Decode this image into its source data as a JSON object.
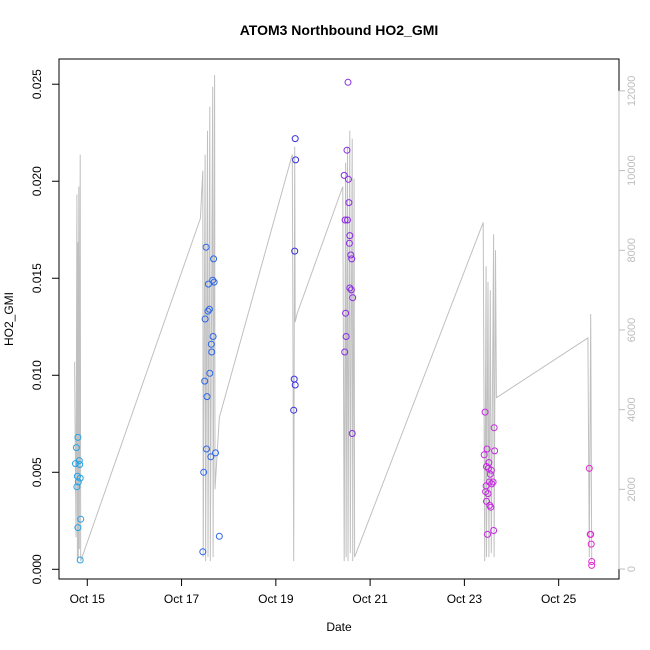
{
  "chart_data": {
    "type": "scatter",
    "title": "ATOM3 Northbound HO2_GMI",
    "xlabel": "Date",
    "ylabel": "HO2_GMI",
    "x_axis": {
      "ticks": [
        {
          "day": 15,
          "label": "Oct 15"
        },
        {
          "day": 17,
          "label": "Oct 17"
        },
        {
          "day": 19,
          "label": "Oct 19"
        },
        {
          "day": 21,
          "label": "Oct 21"
        },
        {
          "day": 23,
          "label": "Oct 23"
        },
        {
          "day": 25,
          "label": "Oct 25"
        }
      ],
      "xlim": [
        14.4,
        26.28
      ]
    },
    "ylim": [
      -0.0005,
      0.0263
    ],
    "y_ticks": [
      {
        "value": 0.0,
        "label": "0.000"
      },
      {
        "value": 0.005,
        "label": "0.005"
      },
      {
        "value": 0.01,
        "label": "0.010"
      },
      {
        "value": 0.015,
        "label": "0.015"
      },
      {
        "value": 0.02,
        "label": "0.020"
      },
      {
        "value": 0.025,
        "label": "0.025"
      }
    ],
    "y2lim": [
      -250,
      12800
    ],
    "y2_ticks": [
      {
        "value": 0,
        "label": "0"
      },
      {
        "value": 2000,
        "label": "2000"
      },
      {
        "value": 4000,
        "label": "4000"
      },
      {
        "value": 6000,
        "label": "6000"
      },
      {
        "value": 8000,
        "label": "8000"
      },
      {
        "value": 10000,
        "label": "10000"
      },
      {
        "value": 12000,
        "label": "12000"
      }
    ],
    "colors": {
      "altitude_line": "#c0c0c0",
      "axis": "#000000",
      "right_axis": "#bdbdbd",
      "point_colors_by_date": [
        "#29a3e6",
        "#2b66e8",
        "#3a2fe0",
        "#8a2be2",
        "#c42ae0",
        "#e22bd2"
      ]
    },
    "series": [
      {
        "values": [
          [
            14.75,
            0.00545
          ],
          [
            14.77,
            0.00627
          ],
          [
            14.78,
            0.00425
          ],
          [
            14.79,
            0.0048
          ],
          [
            14.8,
            0.0068
          ],
          [
            14.8,
            0.00215
          ],
          [
            14.81,
            0.0045
          ],
          [
            14.83,
            0.0056
          ],
          [
            14.84,
            0.0054
          ],
          [
            14.85,
            0.0047
          ],
          [
            14.86,
            0.00258
          ],
          [
            14.85,
            0.00048
          ]
        ]
      },
      {
        "values": [
          [
            17.45,
            0.0009
          ],
          [
            17.47,
            0.005
          ],
          [
            17.49,
            0.0097
          ],
          [
            17.5,
            0.0129
          ],
          [
            17.52,
            0.0166
          ],
          [
            17.53,
            0.0062
          ],
          [
            17.54,
            0.0089
          ],
          [
            17.56,
            0.0133
          ],
          [
            17.57,
            0.0147
          ],
          [
            17.59,
            0.0134
          ],
          [
            17.6,
            0.0101
          ],
          [
            17.62,
            0.0058
          ],
          [
            17.63,
            0.0116
          ],
          [
            17.64,
            0.0112
          ],
          [
            17.66,
            0.0149
          ],
          [
            17.67,
            0.012
          ],
          [
            17.68,
            0.016
          ],
          [
            17.69,
            0.0148
          ],
          [
            17.72,
            0.006
          ],
          [
            17.8,
            0.0017
          ]
        ]
      },
      {
        "values": [
          [
            19.38,
            0.0082
          ],
          [
            19.39,
            0.0098
          ],
          [
            19.4,
            0.0164
          ],
          [
            19.41,
            0.0095
          ],
          [
            19.42,
            0.0211
          ],
          [
            19.41,
            0.0222
          ]
        ]
      },
      {
        "values": [
          [
            20.45,
            0.0203
          ],
          [
            20.46,
            0.0112
          ],
          [
            20.47,
            0.018
          ],
          [
            20.48,
            0.0132
          ],
          [
            20.49,
            0.012
          ],
          [
            20.51,
            0.0216
          ],
          [
            20.52,
            0.018
          ],
          [
            20.53,
            0.0251
          ],
          [
            20.54,
            0.0201
          ],
          [
            20.55,
            0.0189
          ],
          [
            20.56,
            0.0168
          ],
          [
            20.57,
            0.0172
          ],
          [
            20.57,
            0.0145
          ],
          [
            20.59,
            0.0162
          ],
          [
            20.6,
            0.0144
          ],
          [
            20.61,
            0.016
          ],
          [
            20.63,
            0.014
          ],
          [
            20.62,
            0.007
          ]
        ]
      },
      {
        "values": [
          [
            23.42,
            0.0059
          ],
          [
            23.44,
            0.0081
          ],
          [
            23.45,
            0.004
          ],
          [
            23.46,
            0.0043
          ],
          [
            23.47,
            0.0053
          ],
          [
            23.47,
            0.0035
          ],
          [
            23.48,
            0.0062
          ],
          [
            23.49,
            0.0018
          ],
          [
            23.5,
            0.0039
          ],
          [
            23.51,
            0.0052
          ],
          [
            23.52,
            0.0055
          ],
          [
            23.53,
            0.0045
          ],
          [
            23.54,
            0.0033
          ],
          [
            23.55,
            0.0049
          ],
          [
            23.56,
            0.0032
          ],
          [
            23.57,
            0.0051
          ],
          [
            23.58,
            0.0044
          ],
          [
            23.61,
            0.0045
          ],
          [
            23.62,
            0.002
          ],
          [
            23.63,
            0.0073
          ],
          [
            23.64,
            0.0061
          ]
        ]
      },
      {
        "values": [
          [
            25.65,
            0.0052
          ],
          [
            25.67,
            0.0018
          ],
          [
            25.68,
            0.0018
          ],
          [
            25.69,
            0.0013
          ],
          [
            25.7,
            0.0004
          ],
          [
            25.7,
            0.0002
          ]
        ]
      }
    ],
    "secondary_line": {
      "values": [
        [
          14.73,
          5200
        ],
        [
          14.76,
          800
        ],
        [
          14.78,
          9400
        ],
        [
          14.79,
          200
        ],
        [
          14.8,
          8200
        ],
        [
          14.81,
          300
        ],
        [
          14.82,
          9600
        ],
        [
          14.83,
          500
        ],
        [
          14.85,
          10400
        ],
        [
          14.86,
          200
        ],
        [
          17.4,
          8800
        ],
        [
          17.45,
          10000
        ],
        [
          17.46,
          300
        ],
        [
          17.5,
          10400
        ],
        [
          17.51,
          200
        ],
        [
          17.55,
          11000
        ],
        [
          17.56,
          300
        ],
        [
          17.6,
          11600
        ],
        [
          17.61,
          200
        ],
        [
          17.66,
          12100
        ],
        [
          17.67,
          300
        ],
        [
          17.7,
          12400
        ],
        [
          17.71,
          2000
        ],
        [
          17.8,
          3800
        ],
        [
          19.35,
          10400
        ],
        [
          19.38,
          200
        ],
        [
          19.4,
          10600
        ],
        [
          19.41,
          6200
        ],
        [
          19.45,
          6400
        ],
        [
          20.42,
          9600
        ],
        [
          20.45,
          200
        ],
        [
          20.48,
          10200
        ],
        [
          20.49,
          300
        ],
        [
          20.52,
          10600
        ],
        [
          20.53,
          200
        ],
        [
          20.57,
          11000
        ],
        [
          20.58,
          400
        ],
        [
          20.62,
          10800
        ],
        [
          20.63,
          200
        ],
        [
          20.66,
          9800
        ],
        [
          20.67,
          300
        ],
        [
          23.4,
          8700
        ],
        [
          23.43,
          200
        ],
        [
          23.46,
          7600
        ],
        [
          23.47,
          300
        ],
        [
          23.5,
          7200
        ],
        [
          23.52,
          300
        ],
        [
          23.55,
          7000
        ],
        [
          23.57,
          400
        ],
        [
          23.62,
          8400
        ],
        [
          23.63,
          300
        ],
        [
          23.66,
          8000
        ],
        [
          23.68,
          4300
        ],
        [
          25.62,
          5800
        ],
        [
          25.65,
          300
        ],
        [
          25.68,
          6400
        ],
        [
          25.7,
          200
        ]
      ]
    }
  }
}
